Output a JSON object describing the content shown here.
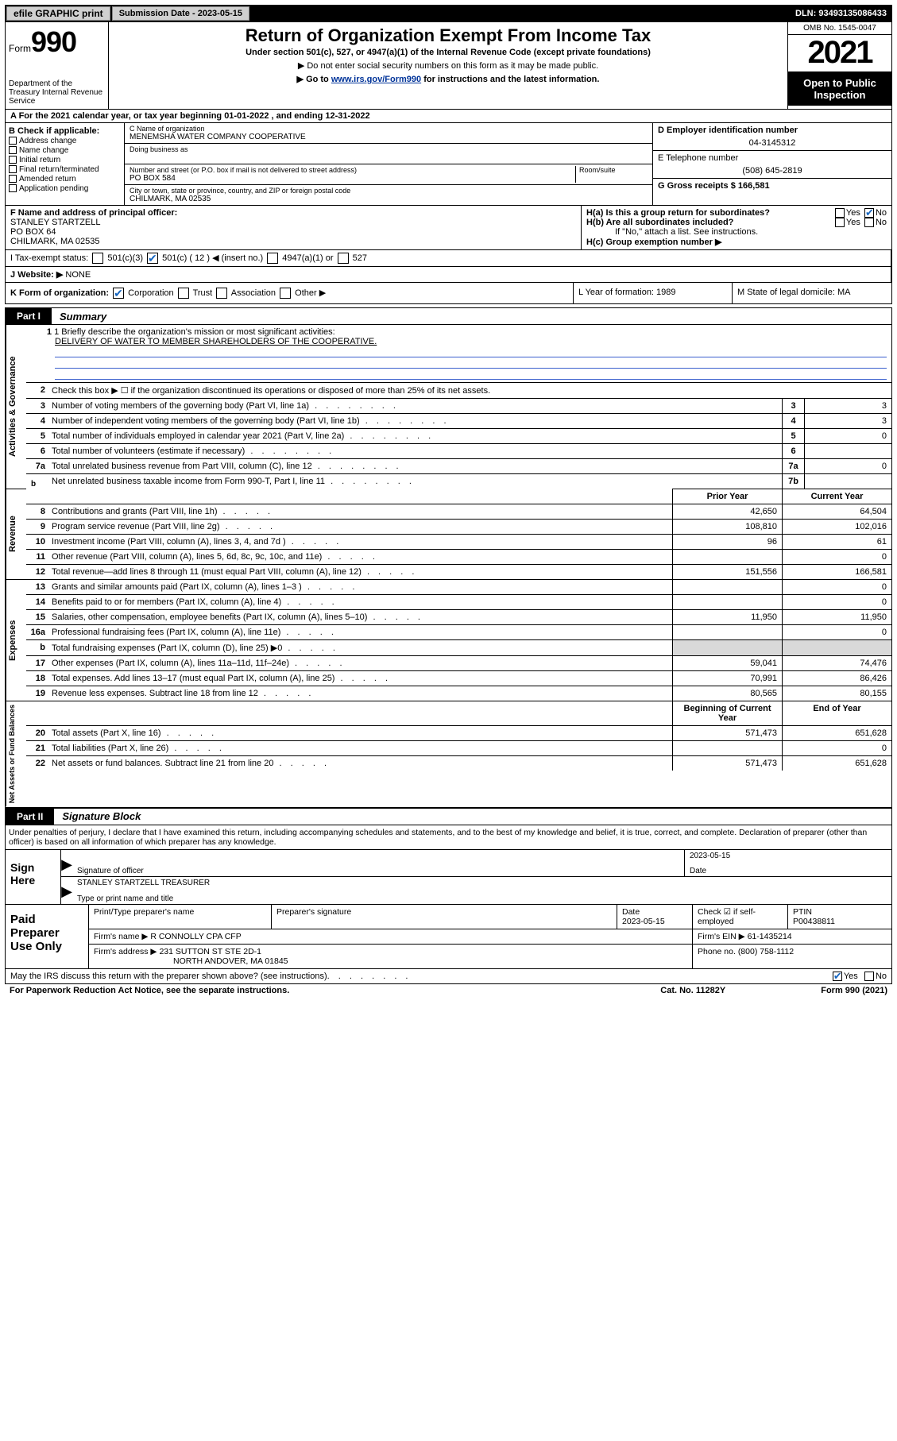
{
  "topbar": {
    "efile": "efile GRAPHIC print",
    "submission_label": "Submission Date - 2023-05-15",
    "dln_label": "DLN: 93493135086433"
  },
  "header": {
    "form_word": "Form",
    "form_no": "990",
    "dept": "Department of the Treasury Internal Revenue Service",
    "h1": "Return of Organization Exempt From Income Tax",
    "h2": "Under section 501(c), 527, or 4947(a)(1) of the Internal Revenue Code (except private foundations)",
    "h3": "▶ Do not enter social security numbers on this form as it may be made public.",
    "h4_pre": "▶ Go to ",
    "h4_link": "www.irs.gov/Form990",
    "h4_post": " for instructions and the latest information.",
    "omb": "OMB No. 1545-0047",
    "year": "2021",
    "otpi": "Open to Public Inspection"
  },
  "lineA": "A For the 2021 calendar year, or tax year beginning 01-01-2022   , and ending 12-31-2022",
  "colB": {
    "label": "B Check if applicable:",
    "opts": [
      "Address change",
      "Name change",
      "Initial return",
      "Final return/terminated",
      "Amended return",
      "Application pending"
    ]
  },
  "colC": {
    "name_lbl": "C Name of organization",
    "name_val": "MENEMSHA WATER COMPANY COOPERATIVE",
    "dba_lbl": "Doing business as",
    "addr_lbl": "Number and street (or P.O. box if mail is not delivered to street address)",
    "room_lbl": "Room/suite",
    "addr_val": "PO BOX 584",
    "city_lbl": "City or town, state or province, country, and ZIP or foreign postal code",
    "city_val": "CHILMARK, MA  02535"
  },
  "colDE": {
    "d_lbl": "D Employer identification number",
    "d_val": "04-3145312",
    "e_lbl": "E Telephone number",
    "e_val": "(508) 645-2819",
    "g_lbl": "G Gross receipts $ 166,581"
  },
  "f": {
    "lbl": "F Name and address of principal officer:",
    "line1": "STANLEY STARTZELL",
    "line2": "PO BOX 64",
    "line3": "CHILMARK, MA  02535"
  },
  "h": {
    "a_lbl": "H(a)  Is this a group return for subordinates?",
    "b_lbl": "H(b)  Are all subordinates included?",
    "b_note": "If \"No,\" attach a list. See instructions.",
    "c_lbl": "H(c)  Group exemption number ▶"
  },
  "i": {
    "lbl": "I   Tax-exempt status:",
    "c12": "501(c) ( 12 ) ◀ (insert no.)",
    "a": "4947(a)(1) or",
    "b": "527"
  },
  "j": {
    "lbl": "J   Website: ▶",
    "val": "NONE"
  },
  "k": {
    "lbl": "K Form of organization:",
    "opts": [
      "Corporation",
      "Trust",
      "Association",
      "Other ▶"
    ]
  },
  "l": {
    "lbl": "L Year of formation: 1989"
  },
  "m": {
    "lbl": "M State of legal domicile: MA"
  },
  "part1": {
    "tab": "Part I",
    "title": "Summary"
  },
  "mission": {
    "lbl": "1  Briefly describe the organization's mission or most significant activities:",
    "text": "DELIVERY OF WATER TO MEMBER SHAREHOLDERS OF THE COOPERATIVE."
  },
  "gov": {
    "l2": "Check this box ▶ ☐  if the organization discontinued its operations or disposed of more than 25% of its net assets.",
    "rows": [
      {
        "n": "3",
        "d": "Number of voting members of the governing body (Part VI, line 1a)",
        "box": "3",
        "v": "3"
      },
      {
        "n": "4",
        "d": "Number of independent voting members of the governing body (Part VI, line 1b)",
        "box": "4",
        "v": "3"
      },
      {
        "n": "5",
        "d": "Total number of individuals employed in calendar year 2021 (Part V, line 2a)",
        "box": "5",
        "v": "0"
      },
      {
        "n": "6",
        "d": "Total number of volunteers (estimate if necessary)",
        "box": "6",
        "v": ""
      },
      {
        "n": "7a",
        "d": "Total unrelated business revenue from Part VIII, column (C), line 12",
        "box": "7a",
        "v": "0"
      },
      {
        "n": "",
        "d": "Net unrelated business taxable income from Form 990-T, Part I, line 11",
        "box": "7b",
        "v": ""
      }
    ]
  },
  "revexp_hdr": {
    "prior": "Prior Year",
    "curr": "Current Year"
  },
  "rev": [
    {
      "n": "8",
      "d": "Contributions and grants (Part VIII, line 1h)",
      "p": "42,650",
      "c": "64,504"
    },
    {
      "n": "9",
      "d": "Program service revenue (Part VIII, line 2g)",
      "p": "108,810",
      "c": "102,016"
    },
    {
      "n": "10",
      "d": "Investment income (Part VIII, column (A), lines 3, 4, and 7d )",
      "p": "96",
      "c": "61"
    },
    {
      "n": "11",
      "d": "Other revenue (Part VIII, column (A), lines 5, 6d, 8c, 9c, 10c, and 11e)",
      "p": "",
      "c": "0"
    },
    {
      "n": "12",
      "d": "Total revenue—add lines 8 through 11 (must equal Part VIII, column (A), line 12)",
      "p": "151,556",
      "c": "166,581"
    }
  ],
  "exp": [
    {
      "n": "13",
      "d": "Grants and similar amounts paid (Part IX, column (A), lines 1–3 )",
      "p": "",
      "c": "0"
    },
    {
      "n": "14",
      "d": "Benefits paid to or for members (Part IX, column (A), line 4)",
      "p": "",
      "c": "0"
    },
    {
      "n": "15",
      "d": "Salaries, other compensation, employee benefits (Part IX, column (A), lines 5–10)",
      "p": "11,950",
      "c": "11,950"
    },
    {
      "n": "16a",
      "d": "Professional fundraising fees (Part IX, column (A), line 11e)",
      "p": "",
      "c": "0"
    },
    {
      "n": "b",
      "d": "Total fundraising expenses (Part IX, column (D), line 25) ▶0",
      "p": "SHADE",
      "c": "SHADE"
    },
    {
      "n": "17",
      "d": "Other expenses (Part IX, column (A), lines 11a–11d, 11f–24e)",
      "p": "59,041",
      "c": "74,476"
    },
    {
      "n": "18",
      "d": "Total expenses. Add lines 13–17 (must equal Part IX, column (A), line 25)",
      "p": "70,991",
      "c": "86,426"
    },
    {
      "n": "19",
      "d": "Revenue less expenses. Subtract line 18 from line 12",
      "p": "80,565",
      "c": "80,155"
    }
  ],
  "net_hdr": {
    "beg": "Beginning of Current Year",
    "end": "End of Year"
  },
  "net": [
    {
      "n": "20",
      "d": "Total assets (Part X, line 16)",
      "p": "571,473",
      "c": "651,628"
    },
    {
      "n": "21",
      "d": "Total liabilities (Part X, line 26)",
      "p": "",
      "c": "0"
    },
    {
      "n": "22",
      "d": "Net assets or fund balances. Subtract line 21 from line 20",
      "p": "571,473",
      "c": "651,628"
    }
  ],
  "sidelabels": {
    "gov": "Activities & Governance",
    "rev": "Revenue",
    "exp": "Expenses",
    "net": "Net Assets or Fund Balances"
  },
  "part2": {
    "tab": "Part II",
    "title": "Signature Block"
  },
  "sig_intro": "Under penalties of perjury, I declare that I have examined this return, including accompanying schedules and statements, and to the best of my knowledge and belief, it is true, correct, and complete. Declaration of preparer (other than officer) is based on all information of which preparer has any knowledge.",
  "sign": {
    "side": "Sign Here",
    "date": "2023-05-15",
    "sig_lbl": "Signature of officer",
    "date_lbl": "Date",
    "name": "STANLEY STARTZELL  TREASURER",
    "name_lbl": "Type or print name and title"
  },
  "prep": {
    "side": "Paid Preparer Use Only",
    "h1": "Print/Type preparer's name",
    "h2": "Preparer's signature",
    "h3": "Date",
    "h4": "",
    "h5": "PTIN",
    "date": "2023-05-15",
    "check_lbl": "Check ☑ if self-employed",
    "ptin": "P00438811",
    "firm_lbl": "Firm's name   ▶",
    "firm": "R CONNOLLY CPA CFP",
    "ein_lbl": "Firm's EIN ▶",
    "ein": "61-1435214",
    "addr_lbl": "Firm's address ▶",
    "addr1": "231 SUTTON ST STE 2D-1",
    "addr2": "NORTH ANDOVER, MA  01845",
    "ph_lbl": "Phone no.",
    "ph": "(800) 758-1112"
  },
  "footer": {
    "q": "May the IRS discuss this return with the preparer shown above? (see instructions)",
    "yes": "Yes",
    "no": "No"
  },
  "last": {
    "l": "For Paperwork Reduction Act Notice, see the separate instructions.",
    "m": "Cat. No. 11282Y",
    "r": "Form 990 (2021)"
  }
}
